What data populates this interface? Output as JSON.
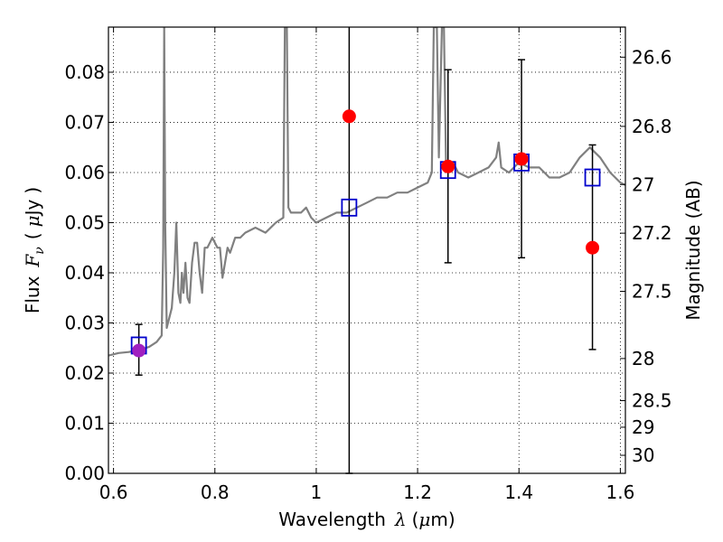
{
  "chart_data": {
    "type": "line",
    "xlabel": {
      "prefix": "Wavelength",
      "symbol": "λ",
      "unit_open": "(",
      "unit_mu": "μ",
      "unit_rest": "m)"
    },
    "ylabel": {
      "prefix": "Flux",
      "symbol": "F",
      "subscript": "ν",
      "unit_open": "(",
      "unit_mu": "μ",
      "unit_rest": "Jy",
      "unit_close": ")"
    },
    "y2label": "Magnitude (AB)",
    "xlim": [
      0.59,
      1.61
    ],
    "ylim": [
      0.0,
      0.089
    ],
    "grid": true,
    "x_ticks": [
      {
        "value": 0.6,
        "label": "0.6"
      },
      {
        "value": 0.8,
        "label": "0.8"
      },
      {
        "value": 1.0,
        "label": "1"
      },
      {
        "value": 1.2,
        "label": "1.2"
      },
      {
        "value": 1.4,
        "label": "1.4"
      },
      {
        "value": 1.6,
        "label": "1.6"
      }
    ],
    "y_ticks": [
      {
        "value": 0.0,
        "label": "0.00"
      },
      {
        "value": 0.01,
        "label": "0.01"
      },
      {
        "value": 0.02,
        "label": "0.02"
      },
      {
        "value": 0.03,
        "label": "0.03"
      },
      {
        "value": 0.04,
        "label": "0.04"
      },
      {
        "value": 0.05,
        "label": "0.05"
      },
      {
        "value": 0.06,
        "label": "0.06"
      },
      {
        "value": 0.07,
        "label": "0.07"
      },
      {
        "value": 0.08,
        "label": "0.08"
      }
    ],
    "y2_ticks": [
      {
        "flux": 0.083,
        "label": "26.6"
      },
      {
        "flux": 0.0692,
        "label": "26.8"
      },
      {
        "flux": 0.0576,
        "label": "27"
      },
      {
        "flux": 0.0479,
        "label": "27.2"
      },
      {
        "flux": 0.0363,
        "label": "27.5"
      },
      {
        "flux": 0.0229,
        "label": "28"
      },
      {
        "flux": 0.0145,
        "label": "28.5"
      },
      {
        "flux": 0.0092,
        "label": "29"
      },
      {
        "flux": 0.0036,
        "label": "30"
      }
    ],
    "series": [
      {
        "style": "line",
        "color": "#808080",
        "points": [
          [
            0.59,
            0.0235
          ],
          [
            0.61,
            0.024
          ],
          [
            0.63,
            0.0242
          ],
          [
            0.65,
            0.0246
          ],
          [
            0.67,
            0.0252
          ],
          [
            0.685,
            0.0262
          ],
          [
            0.695,
            0.0275
          ],
          [
            0.698,
            0.045
          ],
          [
            0.7,
            0.089
          ],
          [
            0.702,
            0.05
          ],
          [
            0.705,
            0.029
          ],
          [
            0.715,
            0.033
          ],
          [
            0.72,
            0.04
          ],
          [
            0.724,
            0.05
          ],
          [
            0.728,
            0.036
          ],
          [
            0.732,
            0.034
          ],
          [
            0.735,
            0.04
          ],
          [
            0.738,
            0.036
          ],
          [
            0.742,
            0.042
          ],
          [
            0.746,
            0.035
          ],
          [
            0.75,
            0.034
          ],
          [
            0.755,
            0.042
          ],
          [
            0.76,
            0.046
          ],
          [
            0.765,
            0.046
          ],
          [
            0.77,
            0.04
          ],
          [
            0.775,
            0.036
          ],
          [
            0.78,
            0.045
          ],
          [
            0.785,
            0.045
          ],
          [
            0.79,
            0.046
          ],
          [
            0.795,
            0.047
          ],
          [
            0.8,
            0.046
          ],
          [
            0.805,
            0.045
          ],
          [
            0.81,
            0.045
          ],
          [
            0.815,
            0.039
          ],
          [
            0.82,
            0.042
          ],
          [
            0.825,
            0.045
          ],
          [
            0.83,
            0.044
          ],
          [
            0.84,
            0.047
          ],
          [
            0.85,
            0.047
          ],
          [
            0.86,
            0.048
          ],
          [
            0.88,
            0.049
          ],
          [
            0.9,
            0.048
          ],
          [
            0.92,
            0.05
          ],
          [
            0.935,
            0.051
          ],
          [
            0.938,
            0.089
          ],
          [
            0.942,
            0.089
          ],
          [
            0.945,
            0.053
          ],
          [
            0.95,
            0.052
          ],
          [
            0.97,
            0.052
          ],
          [
            0.98,
            0.053
          ],
          [
            0.99,
            0.051
          ],
          [
            1.0,
            0.05
          ],
          [
            1.02,
            0.051
          ],
          [
            1.04,
            0.052
          ],
          [
            1.06,
            0.052
          ],
          [
            1.08,
            0.053
          ],
          [
            1.1,
            0.054
          ],
          [
            1.12,
            0.055
          ],
          [
            1.14,
            0.055
          ],
          [
            1.16,
            0.056
          ],
          [
            1.18,
            0.056
          ],
          [
            1.2,
            0.057
          ],
          [
            1.22,
            0.058
          ],
          [
            1.228,
            0.06
          ],
          [
            1.232,
            0.089
          ],
          [
            1.238,
            0.089
          ],
          [
            1.242,
            0.063
          ],
          [
            1.248,
            0.089
          ],
          [
            1.252,
            0.089
          ],
          [
            1.256,
            0.062
          ],
          [
            1.27,
            0.062
          ],
          [
            1.28,
            0.06
          ],
          [
            1.3,
            0.059
          ],
          [
            1.32,
            0.06
          ],
          [
            1.34,
            0.061
          ],
          [
            1.355,
            0.063
          ],
          [
            1.36,
            0.066
          ],
          [
            1.365,
            0.061
          ],
          [
            1.38,
            0.06
          ],
          [
            1.4,
            0.062
          ],
          [
            1.42,
            0.061
          ],
          [
            1.44,
            0.061
          ],
          [
            1.46,
            0.059
          ],
          [
            1.48,
            0.059
          ],
          [
            1.5,
            0.06
          ],
          [
            1.52,
            0.063
          ],
          [
            1.54,
            0.065
          ],
          [
            1.56,
            0.063
          ],
          [
            1.58,
            0.06
          ],
          [
            1.6,
            0.058
          ],
          [
            1.61,
            0.0575
          ]
        ]
      },
      {
        "style": "open-square",
        "color": "#0000cc",
        "points": [
          [
            0.65,
            0.0255
          ],
          [
            1.065,
            0.053
          ],
          [
            1.26,
            0.0605
          ],
          [
            1.405,
            0.062
          ],
          [
            1.545,
            0.059
          ]
        ]
      },
      {
        "style": "filled-circle",
        "color": "#ff0000",
        "points": [
          [
            1.065,
            0.0712
          ],
          [
            1.26,
            0.0612
          ],
          [
            1.405,
            0.0627
          ],
          [
            1.545,
            0.045
          ]
        ]
      },
      {
        "style": "filled-circle",
        "color": "#a020c0",
        "points": [
          [
            0.65,
            0.0245
          ]
        ]
      },
      {
        "style": "errorbar",
        "color": "#000000",
        "points": [
          [
            0.65,
            0.0196,
            0.0297
          ],
          [
            1.065,
            0.0,
            0.089
          ],
          [
            1.26,
            0.042,
            0.0805
          ],
          [
            1.405,
            0.043,
            0.0825
          ],
          [
            1.545,
            0.0247,
            0.0655
          ]
        ]
      }
    ]
  }
}
